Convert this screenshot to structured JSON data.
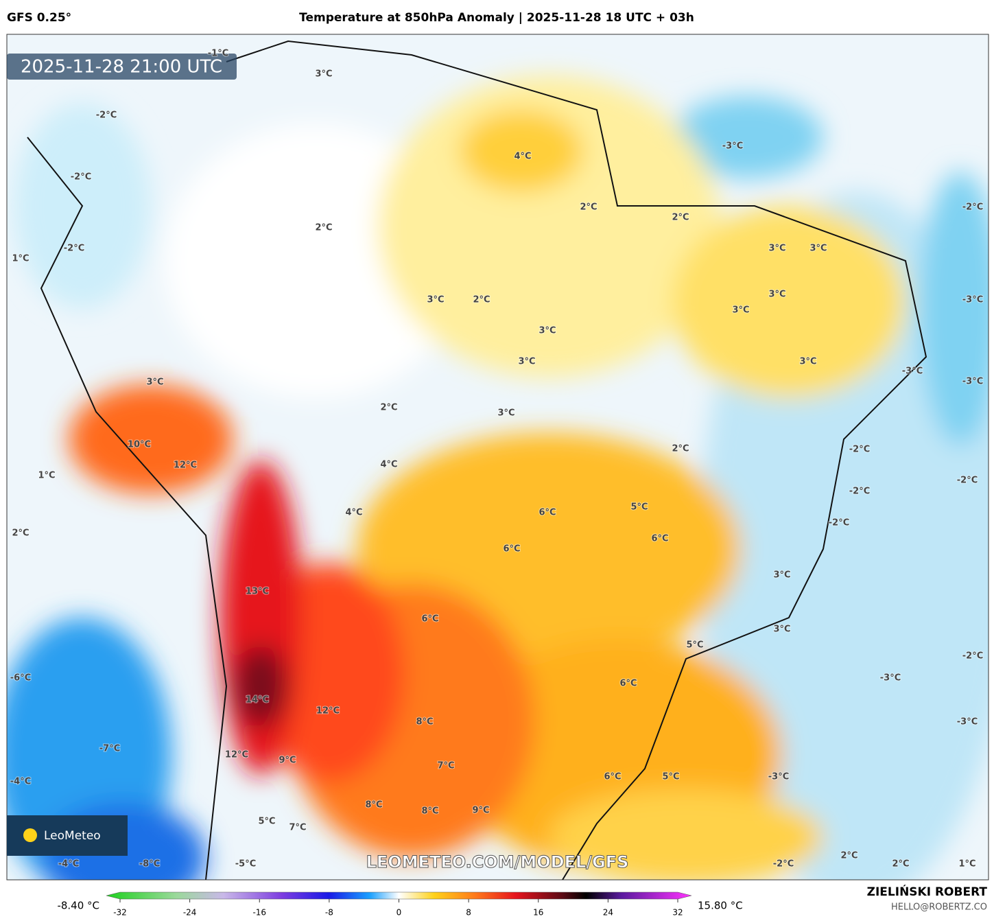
{
  "header": {
    "model": "GFS 0.25°",
    "title": "Temperature at 850hPa Anomaly | 2025-11-28 18 UTC + 03h"
  },
  "map": {
    "timestamp": "2025-11-28 21:00 UTC",
    "logo": "LeoMeteo",
    "watermark": "LEOMETEO.COM/MODEL/GFS",
    "contour_labels": [
      "3°C",
      "-2°C",
      "-1°C",
      "4°C",
      "-3°C",
      "-2°C",
      "2°C",
      "2°C",
      "-2°C",
      "2°C",
      "-2°C",
      "3°C",
      "3°C",
      "1°C",
      "3°C",
      "2°C",
      "3°C",
      "-3°C",
      "3°C",
      "3°C",
      "3°C",
      "3°C",
      "-3°C",
      "-3°C",
      "3°C",
      "2°C",
      "3°C",
      "10°C",
      "2°C",
      "-2°C",
      "4°C",
      "12°C",
      "1°C",
      "-2°C",
      "-2°C",
      "5°C",
      "6°C",
      "4°C",
      "-2°C",
      "2°C",
      "6°C",
      "6°C",
      "3°C",
      "13°C",
      "6°C",
      "3°C",
      "5°C",
      "-2°C",
      "-6°C",
      "6°C",
      "-3°C",
      "14°C",
      "12°C",
      "8°C",
      "-3°C",
      "-7°C",
      "12°C",
      "9°C",
      "7°C",
      "6°C",
      "5°C",
      "-4°C",
      "-3°C",
      "8°C",
      "8°C",
      "9°C",
      "5°C",
      "7°C",
      "2°C",
      "-4°C",
      "-8°C",
      "-5°C",
      "-2°C",
      "2°C",
      "1°C"
    ]
  },
  "colorbar": {
    "min_label": "-8.40 °C",
    "max_label": "15.80 °C",
    "range": [
      -32,
      32
    ],
    "ticks": [
      -32,
      -24,
      -16,
      -8,
      0,
      8,
      16,
      24,
      32
    ]
  },
  "footer": {
    "author": "ZIELIŃSKI ROBERT",
    "contact": "HELLO@ROBERTZ.CO"
  }
}
